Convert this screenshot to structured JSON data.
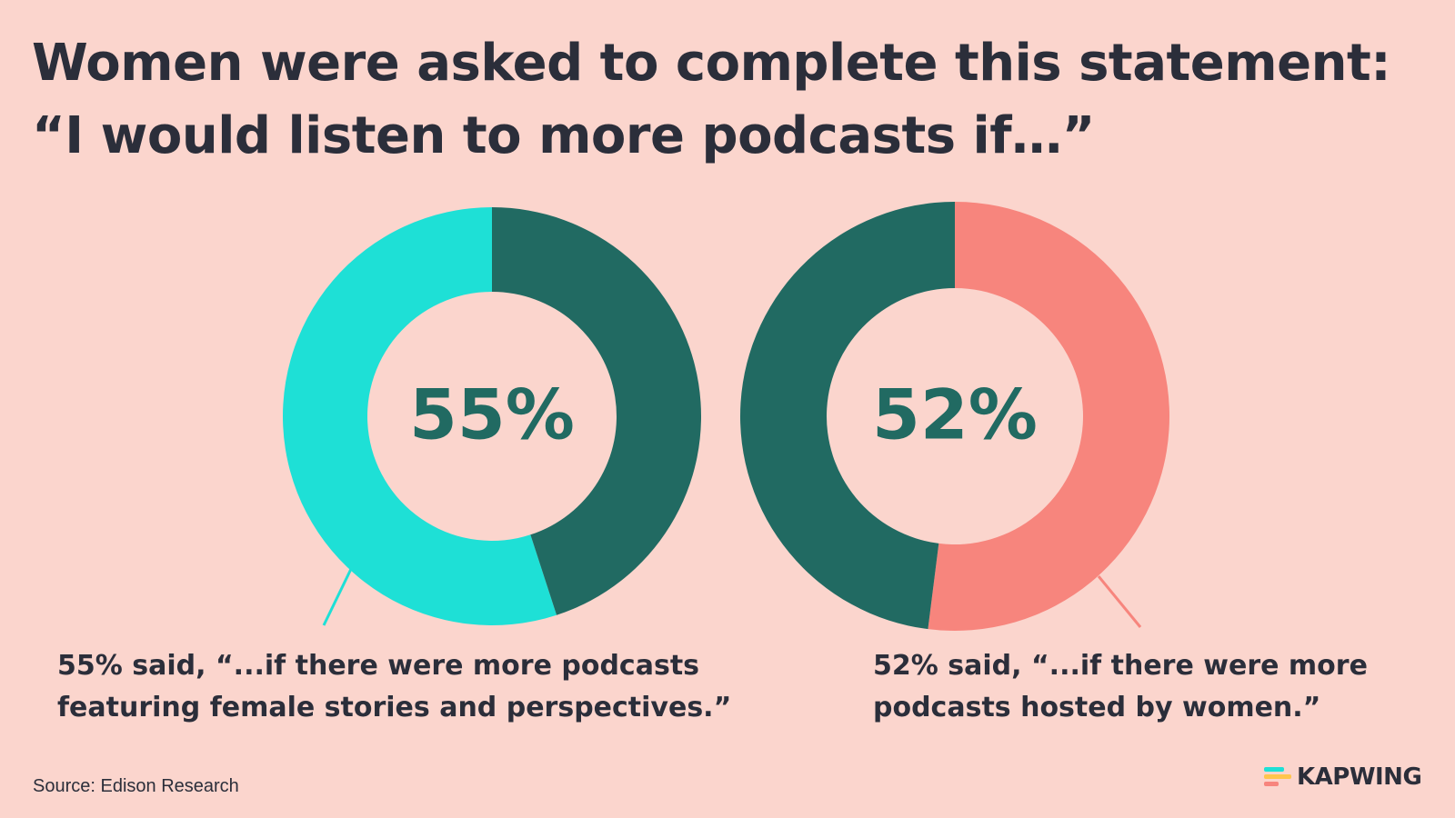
{
  "title": "Women were asked to complete this statement: “I would listen to more podcasts if…”",
  "chart_data": [
    {
      "type": "pie",
      "center_label": "55%",
      "slices": [
        {
          "value": 55,
          "color": "#1ee0d6"
        },
        {
          "value": 45,
          "color": "#216a62"
        }
      ],
      "caption": "55% said, “...if there were more podcasts featuring female stories and perspectives.”"
    },
    {
      "type": "pie",
      "center_label": "52%",
      "slices": [
        {
          "value": 52,
          "color": "#f7857d"
        },
        {
          "value": 48,
          "color": "#216a62"
        }
      ],
      "caption": "52% said, “...if there were more podcasts hosted by women.”"
    }
  ],
  "source": "Source: Edison Research",
  "brand": {
    "name": "KAPWING",
    "icon": "kapwing-logo-icon",
    "colors": [
      "#1ee0d6",
      "#ffc54d",
      "#f7857d"
    ]
  }
}
